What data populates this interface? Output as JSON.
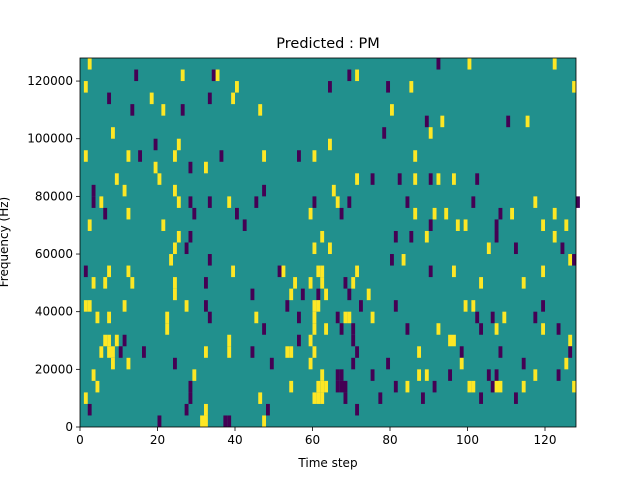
{
  "chart_data": {
    "type": "heatmap",
    "title": "Predicted : PM",
    "xlabel": "Time step",
    "ylabel": "Frequency (Hz)",
    "xlim": [
      0,
      128
    ],
    "ylim": [
      0,
      128000
    ],
    "xticks": [
      0,
      20,
      40,
      60,
      80,
      100,
      120
    ],
    "yticks": [
      0,
      20000,
      40000,
      60000,
      80000,
      100000,
      120000
    ],
    "xtick_labels": [
      "0",
      "20",
      "40",
      "60",
      "80",
      "100",
      "120"
    ],
    "ytick_labels": [
      "0",
      "20000",
      "40000",
      "60000",
      "80000",
      "100000",
      "120000"
    ],
    "value_levels": [
      -1,
      0,
      1
    ],
    "colors": {
      "-1": "#440154",
      "0": "#21908d",
      "1": "#fde725"
    },
    "background_value": 0,
    "grid": false,
    "cells_note": "cells listed as [time_step, frequency_Hz_bin_start, value]; bin height 4000 Hz; all other cells are 0",
    "cells": [
      [
        2,
        124000,
        1
      ],
      [
        14,
        120000,
        -1
      ],
      [
        26,
        120000,
        1
      ],
      [
        34,
        120000,
        -1
      ],
      [
        35,
        120000,
        1
      ],
      [
        69,
        120000,
        -1
      ],
      [
        71,
        120000,
        1
      ],
      [
        100,
        124000,
        1
      ],
      [
        92,
        124000,
        -1
      ],
      [
        122,
        124000,
        1
      ],
      [
        1,
        116000,
        1
      ],
      [
        40,
        116000,
        1
      ],
      [
        64,
        116000,
        -1
      ],
      [
        79,
        116000,
        -1
      ],
      [
        85,
        116000,
        1
      ],
      [
        127,
        116000,
        1
      ],
      [
        7,
        112000,
        -1
      ],
      [
        18,
        112000,
        1
      ],
      [
        33,
        112000,
        -1
      ],
      [
        39,
        112000,
        1
      ],
      [
        13,
        108000,
        -1
      ],
      [
        21,
        108000,
        1
      ],
      [
        26,
        108000,
        -1
      ],
      [
        46,
        108000,
        1
      ],
      [
        80,
        108000,
        1
      ],
      [
        89,
        104000,
        -1
      ],
      [
        93,
        104000,
        1
      ],
      [
        110,
        104000,
        -1
      ],
      [
        115,
        104000,
        1
      ],
      [
        8,
        100000,
        1
      ],
      [
        78,
        100000,
        -1
      ],
      [
        90,
        100000,
        1
      ],
      [
        19,
        96000,
        -1
      ],
      [
        25,
        96000,
        1
      ],
      [
        64,
        96000,
        1
      ],
      [
        1,
        92000,
        1
      ],
      [
        12,
        92000,
        1
      ],
      [
        15,
        92000,
        -1
      ],
      [
        24,
        92000,
        1
      ],
      [
        36,
        92000,
        -1
      ],
      [
        47,
        92000,
        1
      ],
      [
        56,
        92000,
        -1
      ],
      [
        60,
        92000,
        1
      ],
      [
        86,
        92000,
        1
      ],
      [
        19,
        88000,
        1
      ],
      [
        28,
        88000,
        -1
      ],
      [
        32,
        88000,
        1
      ],
      [
        86,
        84000,
        1
      ],
      [
        9,
        84000,
        1
      ],
      [
        20,
        84000,
        1
      ],
      [
        47,
        80000,
        -1
      ],
      [
        65,
        80000,
        1
      ],
      [
        71,
        84000,
        1
      ],
      [
        75,
        84000,
        -1
      ],
      [
        82,
        84000,
        -1
      ],
      [
        90,
        84000,
        -1
      ],
      [
        92,
        84000,
        1
      ],
      [
        96,
        84000,
        1
      ],
      [
        102,
        84000,
        -1
      ],
      [
        3,
        80000,
        -1
      ],
      [
        11,
        80000,
        1
      ],
      [
        24,
        80000,
        1
      ],
      [
        3,
        76000,
        -1
      ],
      [
        5,
        76000,
        1
      ],
      [
        25,
        76000,
        1
      ],
      [
        28,
        76000,
        -1
      ],
      [
        33,
        76000,
        -1
      ],
      [
        38,
        76000,
        1
      ],
      [
        45,
        76000,
        -1
      ],
      [
        60,
        76000,
        -1
      ],
      [
        66,
        76000,
        1
      ],
      [
        69,
        76000,
        -1
      ],
      [
        84,
        76000,
        -1
      ],
      [
        101,
        76000,
        -1
      ],
      [
        117,
        76000,
        1
      ],
      [
        128,
        76000,
        -1
      ],
      [
        6,
        72000,
        -1
      ],
      [
        12,
        72000,
        1
      ],
      [
        29,
        72000,
        -1
      ],
      [
        40,
        72000,
        -1
      ],
      [
        59,
        72000,
        1
      ],
      [
        67,
        72000,
        -1
      ],
      [
        86,
        72000,
        1
      ],
      [
        91,
        72000,
        1
      ],
      [
        94,
        72000,
        1
      ],
      [
        108,
        72000,
        -1
      ],
      [
        111,
        72000,
        1
      ],
      [
        122,
        72000,
        1
      ],
      [
        2,
        68000,
        1
      ],
      [
        21,
        68000,
        1
      ],
      [
        42,
        68000,
        -1
      ],
      [
        90,
        68000,
        -1
      ],
      [
        97,
        68000,
        1
      ],
      [
        99,
        68000,
        1
      ],
      [
        107,
        68000,
        -1
      ],
      [
        119,
        68000,
        1
      ],
      [
        125,
        68000,
        1
      ],
      [
        25,
        64000,
        1
      ],
      [
        28,
        64000,
        -1
      ],
      [
        62,
        64000,
        1
      ],
      [
        81,
        64000,
        -1
      ],
      [
        85,
        64000,
        -1
      ],
      [
        89,
        64000,
        1
      ],
      [
        107,
        64000,
        -1
      ],
      [
        122,
        64000,
        1
      ],
      [
        24,
        60000,
        1
      ],
      [
        27,
        60000,
        -1
      ],
      [
        60,
        60000,
        1
      ],
      [
        64,
        60000,
        1
      ],
      [
        105,
        60000,
        1
      ],
      [
        112,
        60000,
        -1
      ],
      [
        124,
        60000,
        -1
      ],
      [
        23,
        56000,
        1
      ],
      [
        33,
        56000,
        -1
      ],
      [
        80,
        56000,
        -1
      ],
      [
        83,
        56000,
        1
      ],
      [
        126,
        56000,
        1
      ],
      [
        127,
        56000,
        -1
      ],
      [
        1,
        52000,
        -1
      ],
      [
        7,
        52000,
        1
      ],
      [
        12,
        52000,
        1
      ],
      [
        39,
        52000,
        1
      ],
      [
        51,
        52000,
        -1
      ],
      [
        52,
        52000,
        1
      ],
      [
        61,
        52000,
        1
      ],
      [
        62,
        52000,
        1
      ],
      [
        71,
        52000,
        1
      ],
      [
        90,
        52000,
        -1
      ],
      [
        96,
        52000,
        1
      ],
      [
        119,
        52000,
        1
      ],
      [
        3,
        48000,
        1
      ],
      [
        6,
        48000,
        1
      ],
      [
        13,
        48000,
        1
      ],
      [
        24,
        48000,
        1
      ],
      [
        32,
        48000,
        -1
      ],
      [
        55,
        48000,
        1
      ],
      [
        59,
        48000,
        1
      ],
      [
        62,
        48000,
        1
      ],
      [
        68,
        48000,
        -1
      ],
      [
        70,
        48000,
        1
      ],
      [
        103,
        48000,
        1
      ],
      [
        114,
        48000,
        1
      ],
      [
        24,
        44000,
        1
      ],
      [
        44,
        44000,
        -1
      ],
      [
        54,
        44000,
        1
      ],
      [
        57,
        44000,
        -1
      ],
      [
        61,
        44000,
        -1
      ],
      [
        63,
        44000,
        1
      ],
      [
        69,
        44000,
        -1
      ],
      [
        74,
        44000,
        1
      ],
      [
        1,
        40000,
        1
      ],
      [
        2,
        40000,
        1
      ],
      [
        11,
        40000,
        1
      ],
      [
        27,
        40000,
        1
      ],
      [
        32,
        40000,
        -1
      ],
      [
        53,
        40000,
        -1
      ],
      [
        60,
        40000,
        1
      ],
      [
        61,
        40000,
        1
      ],
      [
        72,
        40000,
        -1
      ],
      [
        81,
        40000,
        -1
      ],
      [
        99,
        40000,
        1
      ],
      [
        101,
        40000,
        1
      ],
      [
        119,
        40000,
        -1
      ],
      [
        4,
        36000,
        1
      ],
      [
        7,
        36000,
        1
      ],
      [
        22,
        36000,
        1
      ],
      [
        33,
        36000,
        -1
      ],
      [
        45,
        36000,
        1
      ],
      [
        56,
        36000,
        -1
      ],
      [
        60,
        36000,
        1
      ],
      [
        66,
        36000,
        -1
      ],
      [
        68,
        36000,
        1
      ],
      [
        69,
        36000,
        1
      ],
      [
        75,
        36000,
        1
      ],
      [
        102,
        36000,
        -1
      ],
      [
        106,
        36000,
        -1
      ],
      [
        109,
        36000,
        1
      ],
      [
        117,
        36000,
        -1
      ],
      [
        22,
        32000,
        1
      ],
      [
        47,
        32000,
        -1
      ],
      [
        60,
        32000,
        1
      ],
      [
        63,
        32000,
        1
      ],
      [
        67,
        32000,
        -1
      ],
      [
        70,
        32000,
        -1
      ],
      [
        84,
        32000,
        -1
      ],
      [
        92,
        32000,
        1
      ],
      [
        103,
        32000,
        -1
      ],
      [
        107,
        32000,
        1
      ],
      [
        119,
        32000,
        1
      ],
      [
        123,
        32000,
        -1
      ],
      [
        6,
        28000,
        1
      ],
      [
        7,
        28000,
        1
      ],
      [
        9,
        28000,
        1
      ],
      [
        11,
        28000,
        -1
      ],
      [
        38,
        28000,
        1
      ],
      [
        56,
        28000,
        -1
      ],
      [
        59,
        28000,
        1
      ],
      [
        70,
        28000,
        -1
      ],
      [
        95,
        28000,
        1
      ],
      [
        96,
        28000,
        1
      ],
      [
        126,
        28000,
        1
      ],
      [
        5,
        24000,
        1
      ],
      [
        7,
        24000,
        1
      ],
      [
        8,
        24000,
        1
      ],
      [
        10,
        24000,
        -1
      ],
      [
        16,
        24000,
        -1
      ],
      [
        32,
        24000,
        1
      ],
      [
        38,
        24000,
        1
      ],
      [
        44,
        24000,
        -1
      ],
      [
        53,
        24000,
        1
      ],
      [
        54,
        24000,
        1
      ],
      [
        60,
        24000,
        1
      ],
      [
        71,
        24000,
        -1
      ],
      [
        87,
        24000,
        1
      ],
      [
        98,
        24000,
        -1
      ],
      [
        108,
        24000,
        -1
      ],
      [
        126,
        24000,
        -1
      ],
      [
        8,
        20000,
        1
      ],
      [
        12,
        20000,
        1
      ],
      [
        24,
        20000,
        -1
      ],
      [
        49,
        20000,
        -1
      ],
      [
        59,
        20000,
        1
      ],
      [
        70,
        20000,
        -1
      ],
      [
        79,
        20000,
        -1
      ],
      [
        98,
        20000,
        1
      ],
      [
        114,
        20000,
        -1
      ],
      [
        125,
        20000,
        1
      ],
      [
        3,
        16000,
        1
      ],
      [
        29,
        16000,
        1
      ],
      [
        62,
        16000,
        1
      ],
      [
        66,
        16000,
        -1
      ],
      [
        67,
        16000,
        -1
      ],
      [
        75,
        16000,
        -1
      ],
      [
        87,
        16000,
        1
      ],
      [
        89,
        16000,
        1
      ],
      [
        95,
        16000,
        -1
      ],
      [
        105,
        16000,
        -1
      ],
      [
        107,
        16000,
        -1
      ],
      [
        117,
        16000,
        1
      ],
      [
        123,
        16000,
        -1
      ],
      [
        4,
        12000,
        1
      ],
      [
        28,
        12000,
        -1
      ],
      [
        54,
        12000,
        1
      ],
      [
        61,
        12000,
        1
      ],
      [
        62,
        12000,
        1
      ],
      [
        63,
        12000,
        1
      ],
      [
        66,
        12000,
        -1
      ],
      [
        67,
        12000,
        -1
      ],
      [
        68,
        12000,
        -1
      ],
      [
        81,
        12000,
        -1
      ],
      [
        84,
        12000,
        1
      ],
      [
        91,
        12000,
        -1
      ],
      [
        100,
        12000,
        1
      ],
      [
        101,
        12000,
        1
      ],
      [
        106,
        12000,
        -1
      ],
      [
        107,
        12000,
        1
      ],
      [
        108,
        12000,
        1
      ],
      [
        114,
        12000,
        1
      ],
      [
        127,
        12000,
        1
      ],
      [
        1,
        8000,
        1
      ],
      [
        28,
        8000,
        -1
      ],
      [
        46,
        8000,
        1
      ],
      [
        60,
        8000,
        1
      ],
      [
        61,
        8000,
        1
      ],
      [
        62,
        8000,
        1
      ],
      [
        68,
        8000,
        -1
      ],
      [
        77,
        8000,
        -1
      ],
      [
        88,
        8000,
        -1
      ],
      [
        103,
        8000,
        -1
      ],
      [
        112,
        8000,
        -1
      ],
      [
        2,
        4000,
        -1
      ],
      [
        27,
        4000,
        -1
      ],
      [
        32,
        4000,
        1
      ],
      [
        48,
        4000,
        -1
      ],
      [
        71,
        4000,
        -1
      ],
      [
        20,
        0,
        -1
      ],
      [
        31,
        0,
        1
      ],
      [
        32,
        0,
        1
      ],
      [
        37,
        0,
        -1
      ],
      [
        38,
        0,
        -1
      ],
      [
        47,
        0,
        1
      ]
    ]
  }
}
